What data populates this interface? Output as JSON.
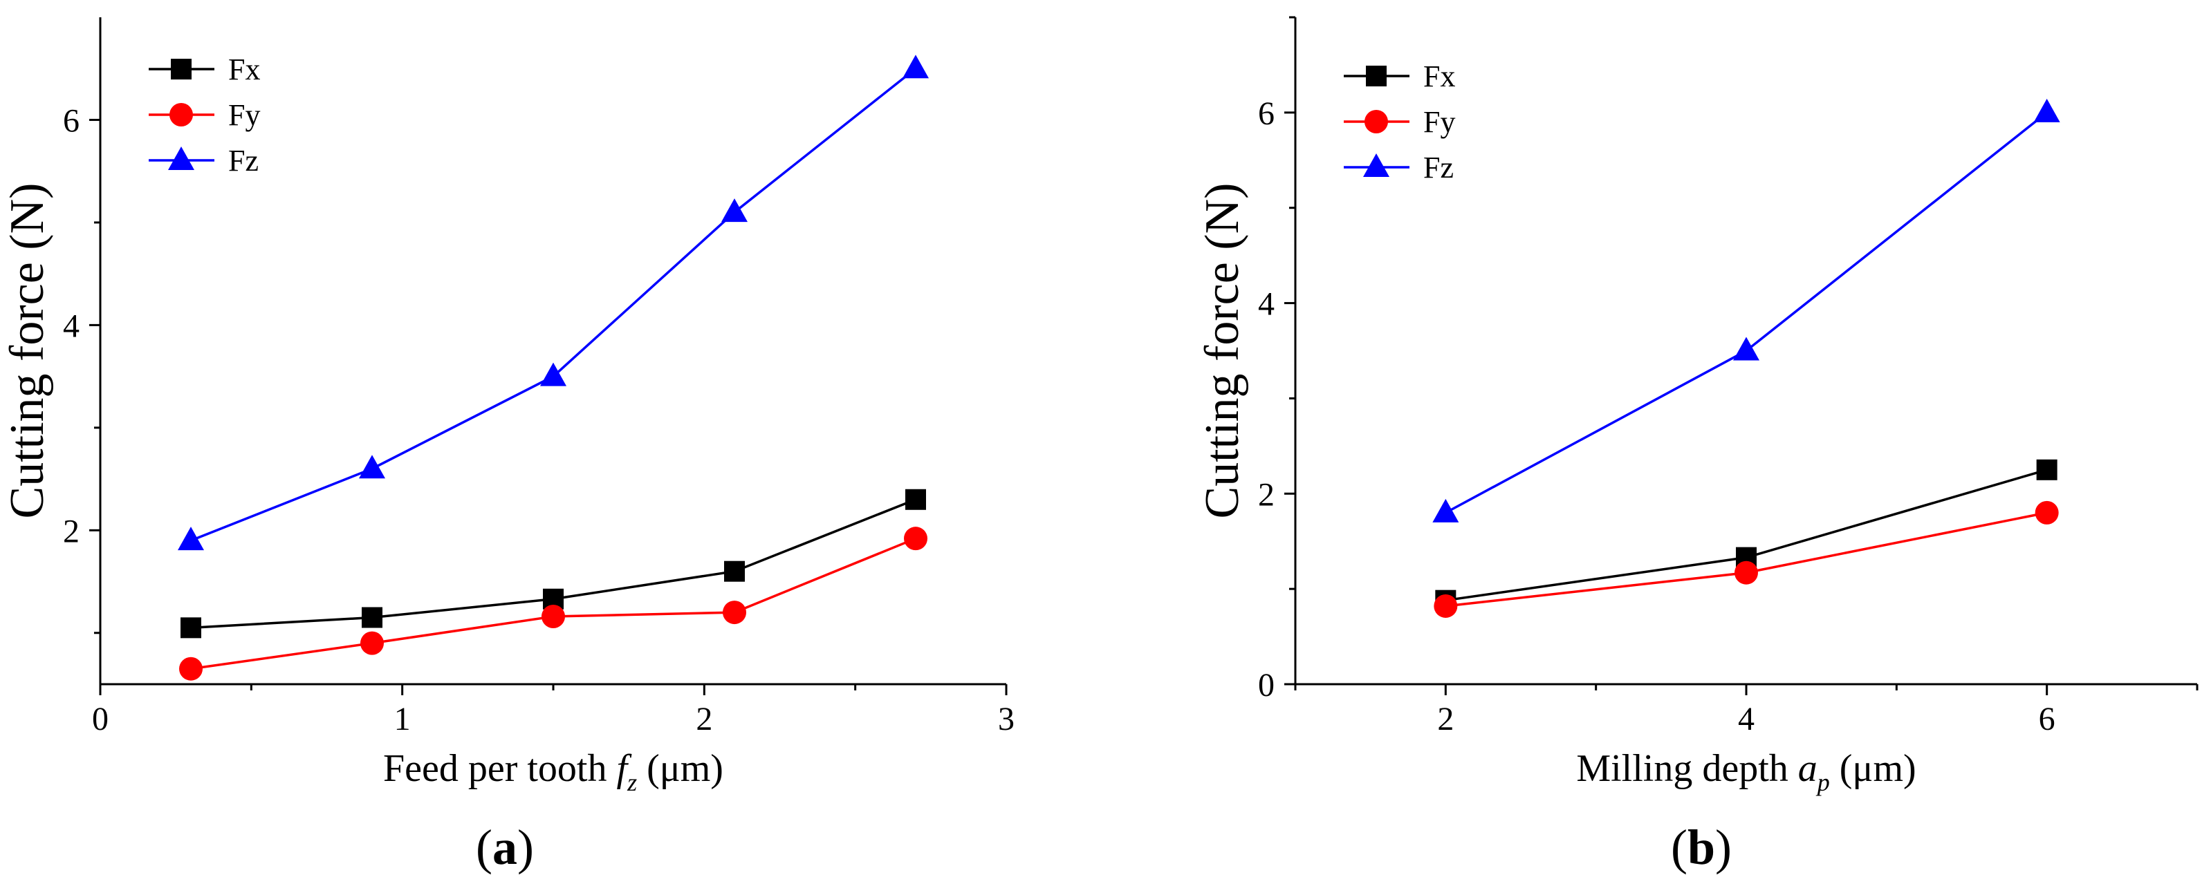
{
  "chart_data": [
    {
      "type": "line",
      "panel_label": "a",
      "title": "",
      "xlabel_prefix": "Feed per tooth ",
      "xlabel_var": "f",
      "xlabel_sub": "z",
      "xlabel_unit": " (μm)",
      "ylabel": "Cutting force (N)",
      "xlim": [
        0,
        3
      ],
      "ylim": [
        0.5,
        7.0
      ],
      "xticks": [
        0,
        1,
        2,
        3
      ],
      "xminor": [
        0.5,
        1.5,
        2.5
      ],
      "yticks": [
        2,
        4,
        6
      ],
      "yminor": [
        1,
        3,
        5
      ],
      "x": [
        0.3,
        0.9,
        1.5,
        2.1,
        2.7
      ],
      "series": [
        {
          "name": "Fx",
          "color": "#000000",
          "marker": "square",
          "values": [
            1.05,
            1.15,
            1.33,
            1.6,
            2.3
          ]
        },
        {
          "name": "Fy",
          "color": "#ff0000",
          "marker": "circle",
          "values": [
            0.65,
            0.9,
            1.16,
            1.2,
            1.92
          ]
        },
        {
          "name": "Fz",
          "color": "#0000ff",
          "marker": "triangle",
          "values": [
            1.9,
            2.6,
            3.5,
            5.1,
            6.5
          ]
        }
      ],
      "legend": "top-left"
    },
    {
      "type": "line",
      "panel_label": "b",
      "title": "",
      "xlabel_prefix": "Milling depth ",
      "xlabel_var": "a",
      "xlabel_sub": "p",
      "xlabel_unit": " (μm)",
      "ylabel": "Cutting force (N)",
      "xlim": [
        1,
        7
      ],
      "ylim": [
        0,
        7.0
      ],
      "xticks": [
        2,
        4,
        6
      ],
      "xminor": [
        1,
        3,
        5,
        7
      ],
      "yticks": [
        0,
        2,
        4,
        6
      ],
      "yminor": [
        1,
        3,
        5,
        7
      ],
      "x": [
        2,
        4,
        6
      ],
      "series": [
        {
          "name": "Fx",
          "color": "#000000",
          "marker": "square",
          "values": [
            0.88,
            1.33,
            2.25
          ]
        },
        {
          "name": "Fy",
          "color": "#ff0000",
          "marker": "circle",
          "values": [
            0.82,
            1.17,
            1.8
          ]
        },
        {
          "name": "Fz",
          "color": "#0000ff",
          "marker": "triangle",
          "values": [
            1.8,
            3.5,
            6.0
          ]
        }
      ],
      "legend": "top-left"
    }
  ]
}
